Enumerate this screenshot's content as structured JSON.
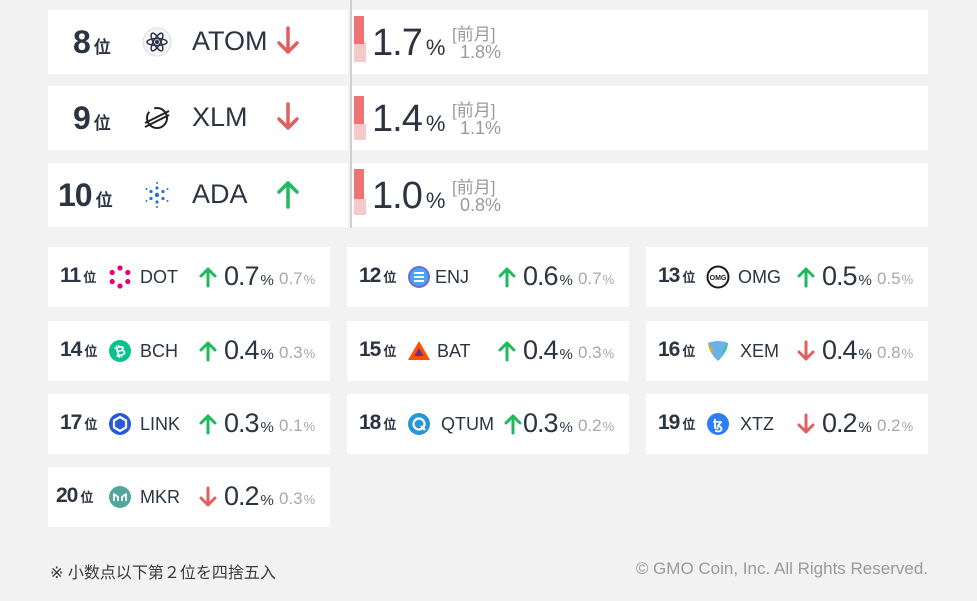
{
  "top_rows": [
    {
      "rank": "8",
      "unit": "位",
      "symbol": "ATOM",
      "trend": "down",
      "pct": "1.7",
      "pct_unit": "%",
      "prev_label": "[前月]",
      "prev": "1.8%",
      "icon": "atom-icon"
    },
    {
      "rank": "9",
      "unit": "位",
      "symbol": "XLM",
      "trend": "down",
      "pct": "1.4",
      "pct_unit": "%",
      "prev_label": "[前月]",
      "prev": "1.1%",
      "icon": "stellar-icon"
    },
    {
      "rank": "10",
      "unit": "位",
      "symbol": "ADA",
      "trend": "up",
      "pct": "1.0",
      "pct_unit": "%",
      "prev_label": "[前月]",
      "prev": "0.8%",
      "icon": "cardano-icon"
    }
  ],
  "small_rows": [
    {
      "rank": "11",
      "unit": "位",
      "symbol": "DOT",
      "trend": "up",
      "pct": "0.7",
      "prev": "0.7",
      "pct_unit": "%",
      "icon": "polkadot-icon"
    },
    {
      "rank": "12",
      "unit": "位",
      "symbol": "ENJ",
      "trend": "up",
      "pct": "0.6",
      "prev": "0.7",
      "pct_unit": "%",
      "icon": "enjin-icon"
    },
    {
      "rank": "13",
      "unit": "位",
      "symbol": "OMG",
      "trend": "up",
      "pct": "0.5",
      "prev": "0.5",
      "pct_unit": "%",
      "icon": "omg-icon"
    },
    {
      "rank": "14",
      "unit": "位",
      "symbol": "BCH",
      "trend": "up",
      "pct": "0.4",
      "prev": "0.3",
      "pct_unit": "%",
      "icon": "bitcoin-cash-icon"
    },
    {
      "rank": "15",
      "unit": "位",
      "symbol": "BAT",
      "trend": "up",
      "pct": "0.4",
      "prev": "0.3",
      "pct_unit": "%",
      "icon": "bat-icon"
    },
    {
      "rank": "16",
      "unit": "位",
      "symbol": "XEM",
      "trend": "down",
      "pct": "0.4",
      "prev": "0.8",
      "pct_unit": "%",
      "icon": "nem-icon"
    },
    {
      "rank": "17",
      "unit": "位",
      "symbol": "LINK",
      "trend": "up",
      "pct": "0.3",
      "prev": "0.1",
      "pct_unit": "%",
      "icon": "chainlink-icon"
    },
    {
      "rank": "18",
      "unit": "位",
      "symbol": "QTUM",
      "trend": "up",
      "pct": "0.3",
      "prev": "0.2",
      "pct_unit": "%",
      "icon": "qtum-icon"
    },
    {
      "rank": "19",
      "unit": "位",
      "symbol": "XTZ",
      "trend": "down",
      "pct": "0.2",
      "prev": "0.2",
      "pct_unit": "%",
      "icon": "tezos-icon"
    },
    {
      "rank": "20",
      "unit": "位",
      "symbol": "MKR",
      "trend": "down",
      "pct": "0.2",
      "prev": "0.3",
      "pct_unit": "%",
      "icon": "maker-icon"
    }
  ],
  "colors": {
    "up": "#1dbb5c",
    "down": "#e06060",
    "bar_current": "#f07373",
    "bar_previous": "#f6c9c9"
  },
  "footnote": "※ 小数点以下第２位を四捨五入",
  "copyright": "© GMO Coin, Inc. All Rights Reserved."
}
